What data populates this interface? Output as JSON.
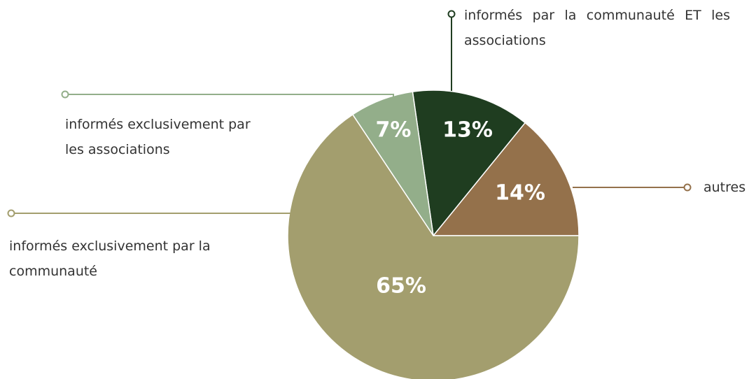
{
  "chart_data": {
    "type": "pie",
    "categories": [
      "autres",
      "informés par la communauté ET les associations",
      "informés exclusivement par les associations",
      "informés exclusivement par la communauté"
    ],
    "values": [
      14,
      13,
      7,
      65
    ],
    "value_labels": [
      "14%",
      "13%",
      "7%",
      "65%"
    ],
    "colors": [
      "#94714b",
      "#1f3d20",
      "#93ae8a",
      "#a39e6e"
    ]
  }
}
